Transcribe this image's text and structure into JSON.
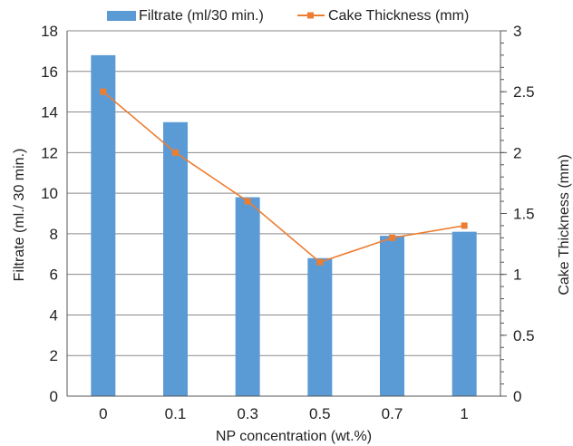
{
  "chart_data": {
    "type": "bar",
    "categories": [
      "0",
      "0.1",
      "0.3",
      "0.5",
      "0.7",
      "1"
    ],
    "series": [
      {
        "name": "Filtrate (ml/30 min.)",
        "type": "bar",
        "axis": "left",
        "color": "#5b9bd5",
        "values": [
          16.8,
          13.5,
          9.8,
          6.8,
          7.9,
          8.1
        ]
      },
      {
        "name": "Cake Thickness (mm)",
        "type": "line",
        "axis": "right",
        "color": "#ed7d31",
        "values": [
          2.5,
          2.0,
          1.6,
          1.1,
          1.3,
          1.4
        ]
      }
    ],
    "xlabel": "NP concentration (wt.%)",
    "ylabel": "Filtrate (ml./ 30 min.)",
    "y2label": "Cake Thickness (mm)",
    "ylim": [
      0,
      18
    ],
    "y2lim": [
      0,
      3
    ],
    "yticks": [
      "0",
      "2",
      "4",
      "6",
      "8",
      "10",
      "12",
      "14",
      "16",
      "18"
    ],
    "y2ticks": [
      "0",
      "0.5",
      "1",
      "1.5",
      "2",
      "2.5",
      "3"
    ],
    "grid": true,
    "legend": "top"
  }
}
